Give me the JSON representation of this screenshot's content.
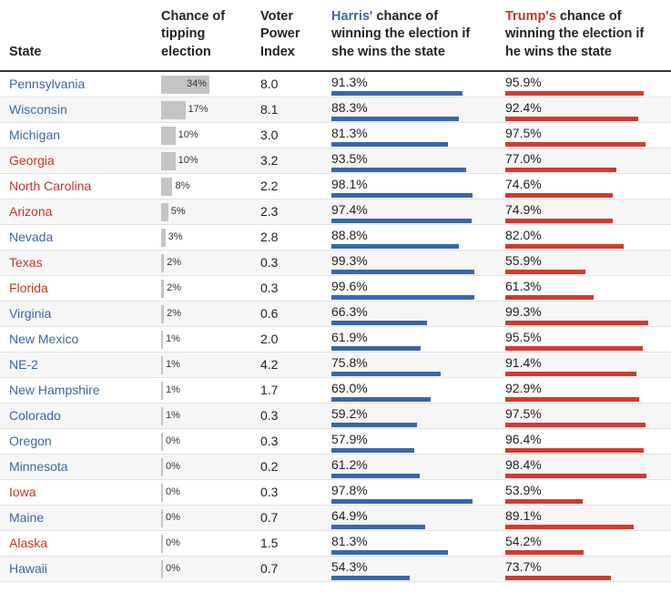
{
  "headers": {
    "state": "State",
    "tipping": [
      "Chance of",
      "tipping",
      "election"
    ],
    "vpi": [
      "Voter",
      "Power",
      "Index"
    ],
    "harris": {
      "name": "Harris'",
      "line1_rest": " chance of",
      "line2": "winning the election if",
      "line3": "she wins the state"
    },
    "trump": {
      "name": "Trump's",
      "line1_rest": " chance of",
      "line2": "winning the election if",
      "line3": "he wins the state"
    }
  },
  "colors": {
    "harris": "#3a67a8",
    "trump": "#d23a2f",
    "tip_bar": "#c4c4c4"
  },
  "chart_data": {
    "type": "table",
    "columns": [
      "State",
      "Chance of tipping election",
      "Voter Power Index",
      "Harris' chance of winning the election if she wins the state",
      "Trump's chance of winning the election if he wins the state"
    ],
    "rows": [
      {
        "state": "Pennsylvania",
        "lean": "blue",
        "tipping": 34,
        "tipping_label": "34%",
        "vpi": "8.0",
        "harris": 91.3,
        "harris_label": "91.3%",
        "trump": 95.9,
        "trump_label": "95.9%"
      },
      {
        "state": "Wisconsin",
        "lean": "blue",
        "tipping": 17,
        "tipping_label": "17%",
        "vpi": "8.1",
        "harris": 88.3,
        "harris_label": "88.3%",
        "trump": 92.4,
        "trump_label": "92.4%"
      },
      {
        "state": "Michigan",
        "lean": "blue",
        "tipping": 10,
        "tipping_label": "10%",
        "vpi": "3.0",
        "harris": 81.3,
        "harris_label": "81.3%",
        "trump": 97.5,
        "trump_label": "97.5%"
      },
      {
        "state": "Georgia",
        "lean": "red",
        "tipping": 10,
        "tipping_label": "10%",
        "vpi": "3.2",
        "harris": 93.5,
        "harris_label": "93.5%",
        "trump": 77.0,
        "trump_label": "77.0%"
      },
      {
        "state": "North Carolina",
        "lean": "red",
        "tipping": 8,
        "tipping_label": "8%",
        "vpi": "2.2",
        "harris": 98.1,
        "harris_label": "98.1%",
        "trump": 74.6,
        "trump_label": "74.6%"
      },
      {
        "state": "Arizona",
        "lean": "red",
        "tipping": 5,
        "tipping_label": "5%",
        "vpi": "2.3",
        "harris": 97.4,
        "harris_label": "97.4%",
        "trump": 74.9,
        "trump_label": "74.9%"
      },
      {
        "state": "Nevada",
        "lean": "blue",
        "tipping": 3,
        "tipping_label": "3%",
        "vpi": "2.8",
        "harris": 88.8,
        "harris_label": "88.8%",
        "trump": 82.0,
        "trump_label": "82.0%"
      },
      {
        "state": "Texas",
        "lean": "red",
        "tipping": 2,
        "tipping_label": "2%",
        "vpi": "0.3",
        "harris": 99.3,
        "harris_label": "99.3%",
        "trump": 55.9,
        "trump_label": "55.9%"
      },
      {
        "state": "Florida",
        "lean": "red",
        "tipping": 2,
        "tipping_label": "2%",
        "vpi": "0.3",
        "harris": 99.6,
        "harris_label": "99.6%",
        "trump": 61.3,
        "trump_label": "61.3%"
      },
      {
        "state": "Virginia",
        "lean": "blue",
        "tipping": 2,
        "tipping_label": "2%",
        "vpi": "0.6",
        "harris": 66.3,
        "harris_label": "66.3%",
        "trump": 99.3,
        "trump_label": "99.3%"
      },
      {
        "state": "New Mexico",
        "lean": "blue",
        "tipping": 1,
        "tipping_label": "1%",
        "vpi": "2.0",
        "harris": 61.9,
        "harris_label": "61.9%",
        "trump": 95.5,
        "trump_label": "95.5%"
      },
      {
        "state": "NE-2",
        "lean": "blue",
        "tipping": 1,
        "tipping_label": "1%",
        "vpi": "4.2",
        "harris": 75.8,
        "harris_label": "75.8%",
        "trump": 91.4,
        "trump_label": "91.4%"
      },
      {
        "state": "New Hampshire",
        "lean": "blue",
        "tipping": 1,
        "tipping_label": "1%",
        "vpi": "1.7",
        "harris": 69.0,
        "harris_label": "69.0%",
        "trump": 92.9,
        "trump_label": "92.9%"
      },
      {
        "state": "Colorado",
        "lean": "blue",
        "tipping": 1,
        "tipping_label": "1%",
        "vpi": "0.3",
        "harris": 59.2,
        "harris_label": "59.2%",
        "trump": 97.5,
        "trump_label": "97.5%"
      },
      {
        "state": "Oregon",
        "lean": "blue",
        "tipping": 0,
        "tipping_label": "0%",
        "vpi": "0.3",
        "harris": 57.9,
        "harris_label": "57.9%",
        "trump": 96.4,
        "trump_label": "96.4%"
      },
      {
        "state": "Minnesota",
        "lean": "blue",
        "tipping": 0,
        "tipping_label": "0%",
        "vpi": "0.2",
        "harris": 61.2,
        "harris_label": "61.2%",
        "trump": 98.4,
        "trump_label": "98.4%"
      },
      {
        "state": "Iowa",
        "lean": "red",
        "tipping": 0,
        "tipping_label": "0%",
        "vpi": "0.3",
        "harris": 97.8,
        "harris_label": "97.8%",
        "trump": 53.9,
        "trump_label": "53.9%"
      },
      {
        "state": "Maine",
        "lean": "blue",
        "tipping": 0,
        "tipping_label": "0%",
        "vpi": "0.7",
        "harris": 64.9,
        "harris_label": "64.9%",
        "trump": 89.1,
        "trump_label": "89.1%"
      },
      {
        "state": "Alaska",
        "lean": "red",
        "tipping": 0,
        "tipping_label": "0%",
        "vpi": "1.5",
        "harris": 81.3,
        "harris_label": "81.3%",
        "trump": 54.2,
        "trump_label": "54.2%"
      },
      {
        "state": "Hawaii",
        "lean": "blue",
        "tipping": 0,
        "tipping_label": "0%",
        "vpi": "0.7",
        "harris": 54.3,
        "harris_label": "54.3%",
        "trump": 73.7,
        "trump_label": "73.7%"
      }
    ]
  }
}
